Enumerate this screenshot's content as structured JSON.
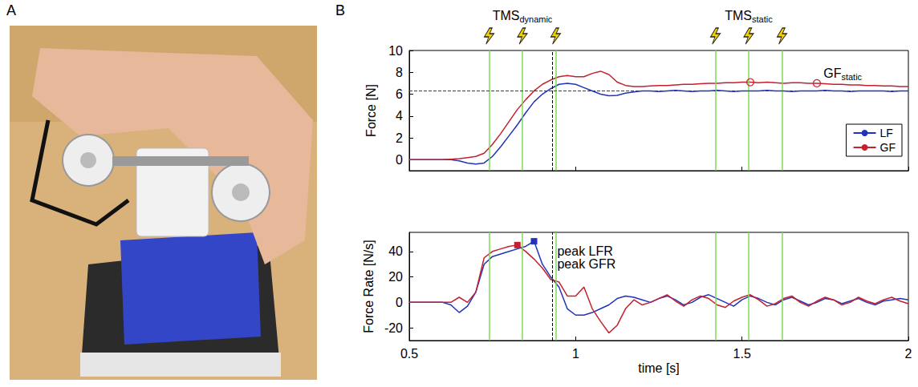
{
  "panel_labels": [
    "A",
    "B"
  ],
  "chart_data": [
    {
      "type": "line",
      "y_label": "Force [N]",
      "x": [
        0.5,
        0.525,
        0.55,
        0.575,
        0.6,
        0.625,
        0.65,
        0.675,
        0.7,
        0.725,
        0.75,
        0.775,
        0.8,
        0.825,
        0.85,
        0.875,
        0.9,
        0.925,
        0.95,
        0.975,
        1,
        1.025,
        1.05,
        1.075,
        1.1,
        1.125,
        1.15,
        1.175,
        1.2,
        1.225,
        1.25,
        1.275,
        1.3,
        1.325,
        1.35,
        1.375,
        1.4,
        1.425,
        1.45,
        1.475,
        1.5,
        1.525,
        1.55,
        1.575,
        1.6,
        1.625,
        1.65,
        1.675,
        1.7,
        1.725,
        1.75,
        1.775,
        1.8,
        1.825,
        1.85,
        1.875,
        1.9,
        1.925,
        1.95,
        1.975,
        2
      ],
      "xlim": [
        0.5,
        2
      ],
      "xticks": [
        0.5,
        1,
        1.5,
        2
      ],
      "ylim": [
        -1,
        10
      ],
      "yticks": [
        0,
        2,
        4,
        6,
        8,
        10
      ],
      "tick_labels": "y",
      "grid": false,
      "legend": "lower right",
      "series": [
        {
          "name": "LF",
          "color": "#2233bb",
          "line_style": "solid",
          "values": [
            0,
            0,
            0,
            0,
            0,
            0,
            -0.1,
            -0.3,
            -0.4,
            -0.3,
            0.3,
            1.2,
            2.2,
            3.2,
            4.3,
            5.3,
            6.0,
            6.5,
            6.9,
            7.0,
            6.9,
            6.6,
            6.3,
            6.0,
            5.85,
            5.9,
            6.1,
            6.2,
            6.3,
            6.3,
            6.25,
            6.3,
            6.35,
            6.3,
            6.25,
            6.3,
            6.3,
            6.35,
            6.3,
            6.25,
            6.3,
            6.3,
            6.3,
            6.35,
            6.3,
            6.3,
            6.25,
            6.3,
            6.3,
            6.3,
            6.35,
            6.3,
            6.3,
            6.25,
            6.3,
            6.3,
            6.3,
            6.3,
            6.25,
            6.3,
            6.3
          ]
        },
        {
          "name": "GF",
          "color": "#c4202e",
          "line_style": "solid",
          "values": [
            0,
            0,
            0,
            0,
            0,
            0.05,
            0.1,
            0.2,
            0.3,
            0.6,
            1.4,
            2.4,
            3.5,
            4.6,
            5.5,
            6.3,
            6.9,
            7.3,
            7.6,
            7.7,
            7.6,
            7.6,
            7.9,
            8.1,
            7.8,
            7.1,
            6.8,
            6.7,
            6.7,
            6.75,
            6.8,
            6.8,
            6.85,
            6.9,
            6.9,
            6.95,
            7.0,
            7.0,
            7.05,
            7.05,
            7.1,
            7.1,
            7.05,
            7.1,
            7.05,
            7.0,
            7.05,
            7.05,
            7.0,
            7.0,
            6.95,
            6.9,
            6.9,
            6.85,
            6.85,
            6.8,
            6.8,
            6.75,
            6.75,
            6.7,
            6.7
          ]
        }
      ],
      "stim_times": [
        0.74,
        0.84,
        0.94,
        1.42,
        1.52,
        1.62
      ],
      "peak_time": 0.925,
      "static_level": 6.3,
      "points": [
        {
          "x": 1.525,
          "y": 7.1,
          "marker": "circle",
          "color": "#c4202e"
        },
        {
          "x": 1.725,
          "y": 7.0,
          "marker": "circle",
          "color": "#c4202e"
        }
      ],
      "annotations": [
        {
          "text": "TMS",
          "subscript": "dynamic",
          "x": 0.84
        },
        {
          "text": "TMS",
          "subscript": "static",
          "x": 1.52
        },
        {
          "text": "GF",
          "subscript": "static",
          "x": 1.74,
          "y": 7.9
        }
      ]
    },
    {
      "type": "line",
      "y_label": "Force Rate [N/s]",
      "x_label": "time [s]",
      "x": [
        0.5,
        0.525,
        0.55,
        0.575,
        0.6,
        0.625,
        0.65,
        0.675,
        0.7,
        0.725,
        0.75,
        0.775,
        0.8,
        0.825,
        0.85,
        0.875,
        0.9,
        0.925,
        0.95,
        0.975,
        1,
        1.025,
        1.05,
        1.075,
        1.1,
        1.125,
        1.15,
        1.175,
        1.2,
        1.225,
        1.25,
        1.275,
        1.3,
        1.325,
        1.35,
        1.375,
        1.4,
        1.425,
        1.45,
        1.475,
        1.5,
        1.525,
        1.55,
        1.575,
        1.6,
        1.625,
        1.65,
        1.675,
        1.7,
        1.725,
        1.75,
        1.775,
        1.8,
        1.825,
        1.85,
        1.875,
        1.9,
        1.925,
        1.95,
        1.975,
        2
      ],
      "xlim": [
        0.5,
        2
      ],
      "xticks": [
        0.5,
        1,
        1.5,
        2
      ],
      "ylim": [
        -30,
        55
      ],
      "yticks": [
        -20,
        0,
        20,
        40
      ],
      "grid": false,
      "series": [
        {
          "color": "#2233bb",
          "line_style": "solid",
          "values": [
            0,
            0,
            0,
            0,
            0,
            -2,
            -8,
            -3,
            8,
            30,
            36,
            38,
            40,
            42,
            44,
            48,
            30,
            20,
            12,
            -5,
            -10,
            -10,
            -8,
            -5,
            -2,
            3,
            5,
            4,
            2,
            0,
            3,
            5,
            2,
            -2,
            0,
            4,
            6,
            3,
            0,
            -3,
            2,
            5,
            3,
            0,
            -2,
            2,
            4,
            1,
            -2,
            0,
            3,
            2,
            -1,
            1,
            3,
            0,
            -2,
            1,
            2,
            3,
            2
          ]
        },
        {
          "color": "#c4202e",
          "line_style": "solid",
          "values": [
            0,
            0,
            0,
            0,
            0,
            0,
            4,
            0,
            8,
            35,
            40,
            42,
            44,
            45,
            40,
            34,
            27,
            18,
            16,
            5,
            5,
            12,
            -5,
            -15,
            -24,
            -18,
            -5,
            2,
            -2,
            0,
            3,
            6,
            1,
            -3,
            2,
            5,
            3,
            -2,
            -4,
            1,
            4,
            6,
            2,
            -3,
            -1,
            3,
            5,
            0,
            -3,
            1,
            4,
            2,
            -2,
            0,
            4,
            1,
            -1,
            2,
            4,
            1,
            -1
          ]
        }
      ],
      "stim_times": [
        0.74,
        0.84,
        0.94,
        1.42,
        1.52,
        1.62
      ],
      "peak_time": 0.925,
      "points": [
        {
          "x": 0.825,
          "y": 45,
          "marker": "square",
          "color": "#c4202e"
        },
        {
          "x": 0.875,
          "y": 48,
          "marker": "square",
          "color": "#2233bb"
        }
      ],
      "annotations": [
        {
          "text": "peak LFR",
          "x": 0.94,
          "y": 40
        },
        {
          "text": "peak GFR",
          "x": 0.94,
          "y": 30
        }
      ]
    }
  ]
}
